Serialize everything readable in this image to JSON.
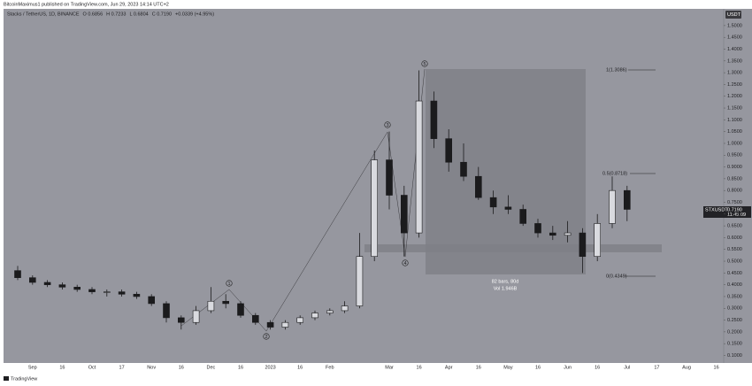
{
  "header": {
    "publisher": "BitcoinMaximus1 published on TradingView.com, Jun 29, 2023 14:14 UTC+2",
    "legend": [
      "Stacks / TetherUS, 1D, BINANCE",
      "O 0.6856",
      "H 0.7233",
      "L 0.6804",
      "C 0.7190",
      "+0.0339 (+4.95%)"
    ]
  },
  "chart_data": {
    "type": "candlestick",
    "categories": [
      null,
      "Sep",
      null,
      "16",
      null,
      "Oct",
      null,
      "17",
      null,
      "Nov",
      null,
      "16",
      null,
      "Dec",
      null,
      "16",
      null,
      "2023",
      null,
      "16",
      null,
      "Feb",
      null,
      null,
      null,
      "Mar",
      null,
      "16",
      null,
      "Apr",
      null,
      "16",
      null,
      "May",
      null,
      "16",
      null,
      "Jun",
      null,
      "16",
      null,
      "Jul",
      null,
      "17",
      null,
      "Aug",
      null,
      "16"
    ],
    "series": [
      {
        "name": "STXUSDT",
        "color": "#1b1b1d",
        "open": [
          0.46,
          0.43,
          0.41,
          0.4,
          0.39,
          0.38,
          0.37,
          0.37,
          0.36,
          0.35,
          0.32,
          0.26,
          0.24,
          0.29,
          0.33,
          0.32,
          0.27,
          0.24,
          0.22,
          0.24,
          0.26,
          0.28,
          0.29,
          0.31,
          0.52,
          0.93,
          0.78,
          0.62,
          1.18,
          1.02,
          0.92,
          0.86,
          0.77,
          0.73,
          0.72,
          0.66,
          0.62,
          0.61,
          0.62,
          0.52,
          0.66,
          0.8,
          null,
          null,
          null,
          null,
          null,
          null
        ],
        "high": [
          0.48,
          0.44,
          0.42,
          0.41,
          0.4,
          0.39,
          0.38,
          0.38,
          0.37,
          0.36,
          0.33,
          0.27,
          0.31,
          0.39,
          0.36,
          0.33,
          0.28,
          0.25,
          0.25,
          0.27,
          0.29,
          0.3,
          0.33,
          0.62,
          0.97,
          1.05,
          0.82,
          1.31,
          1.22,
          1.06,
          1.0,
          0.9,
          0.8,
          0.78,
          0.74,
          0.68,
          0.65,
          0.67,
          0.64,
          0.7,
          0.86,
          0.82,
          null,
          null,
          null,
          null,
          null,
          null
        ],
        "low": [
          0.42,
          0.4,
          0.39,
          0.38,
          0.37,
          0.36,
          0.35,
          0.35,
          0.34,
          0.31,
          0.24,
          0.21,
          0.23,
          0.28,
          0.3,
          0.26,
          0.23,
          0.21,
          0.21,
          0.23,
          0.25,
          0.27,
          0.28,
          0.3,
          0.5,
          0.72,
          0.52,
          0.6,
          0.98,
          0.88,
          0.84,
          0.76,
          0.7,
          0.7,
          0.65,
          0.6,
          0.59,
          0.58,
          0.45,
          0.5,
          0.64,
          0.67,
          null,
          null,
          null,
          null,
          null,
          null
        ],
        "close": [
          0.43,
          0.41,
          0.4,
          0.39,
          0.38,
          0.37,
          0.37,
          0.36,
          0.35,
          0.32,
          0.26,
          0.24,
          0.29,
          0.33,
          0.32,
          0.27,
          0.24,
          0.22,
          0.24,
          0.26,
          0.28,
          0.29,
          0.31,
          0.52,
          0.93,
          0.78,
          0.62,
          1.18,
          1.02,
          0.92,
          0.86,
          0.77,
          0.73,
          0.72,
          0.66,
          0.62,
          0.61,
          0.62,
          0.52,
          0.66,
          0.8,
          0.72,
          null,
          null,
          null,
          null,
          null,
          null
        ]
      }
    ],
    "ylim": [
      0.068,
      1.571
    ],
    "yticks": [
      {
        "value": 0.1,
        "label": "0.1000"
      },
      {
        "value": 0.15,
        "label": "0.1500"
      },
      {
        "value": 0.2,
        "label": "0.2000"
      },
      {
        "value": 0.25,
        "label": "0.2500"
      },
      {
        "value": 0.3,
        "label": "0.3000"
      },
      {
        "value": 0.35,
        "label": "0.3500"
      },
      {
        "value": 0.4,
        "label": "0.4000"
      },
      {
        "value": 0.45,
        "label": "0.4500"
      },
      {
        "value": 0.5,
        "label": "0.5000"
      },
      {
        "value": 0.55,
        "label": "0.5500"
      },
      {
        "value": 0.6,
        "label": "0.6000"
      },
      {
        "value": 0.65,
        "label": "0.6500"
      },
      {
        "value": 0.7,
        "label": "0.7000"
      },
      {
        "value": 0.75,
        "label": "0.7500"
      },
      {
        "value": 0.8,
        "label": "0.8000"
      },
      {
        "value": 0.85,
        "label": "0.8500"
      },
      {
        "value": 0.9,
        "label": "0.9000"
      },
      {
        "value": 0.95,
        "label": "0.9500"
      },
      {
        "value": 1.0,
        "label": "1.0000"
      },
      {
        "value": 1.05,
        "label": "1.0500"
      },
      {
        "value": 1.1,
        "label": "1.1000"
      },
      {
        "value": 1.15,
        "label": "1.1500"
      },
      {
        "value": 1.2,
        "label": "1.2000"
      },
      {
        "value": 1.25,
        "label": "1.2500"
      },
      {
        "value": 1.3,
        "label": "1.3000"
      },
      {
        "value": 1.35,
        "label": "1.3500"
      },
      {
        "value": 1.4,
        "label": "1.4000"
      },
      {
        "value": 1.45,
        "label": "1.4500"
      },
      {
        "value": 1.5,
        "label": "1.5000"
      }
    ],
    "currency": "USDT",
    "last_price": {
      "label": "0.7190",
      "countdown": "11:45:09"
    },
    "annotations": {
      "waves": [
        "1",
        "2",
        "3",
        "4",
        "5"
      ],
      "fib": [
        "1(1.3086)",
        "0.5(0.8718)",
        "0(0.4349)"
      ],
      "range": [
        "82 bars, 80d",
        "Vol 1.946B"
      ]
    }
  },
  "footer": {
    "brand": "TradingView"
  }
}
